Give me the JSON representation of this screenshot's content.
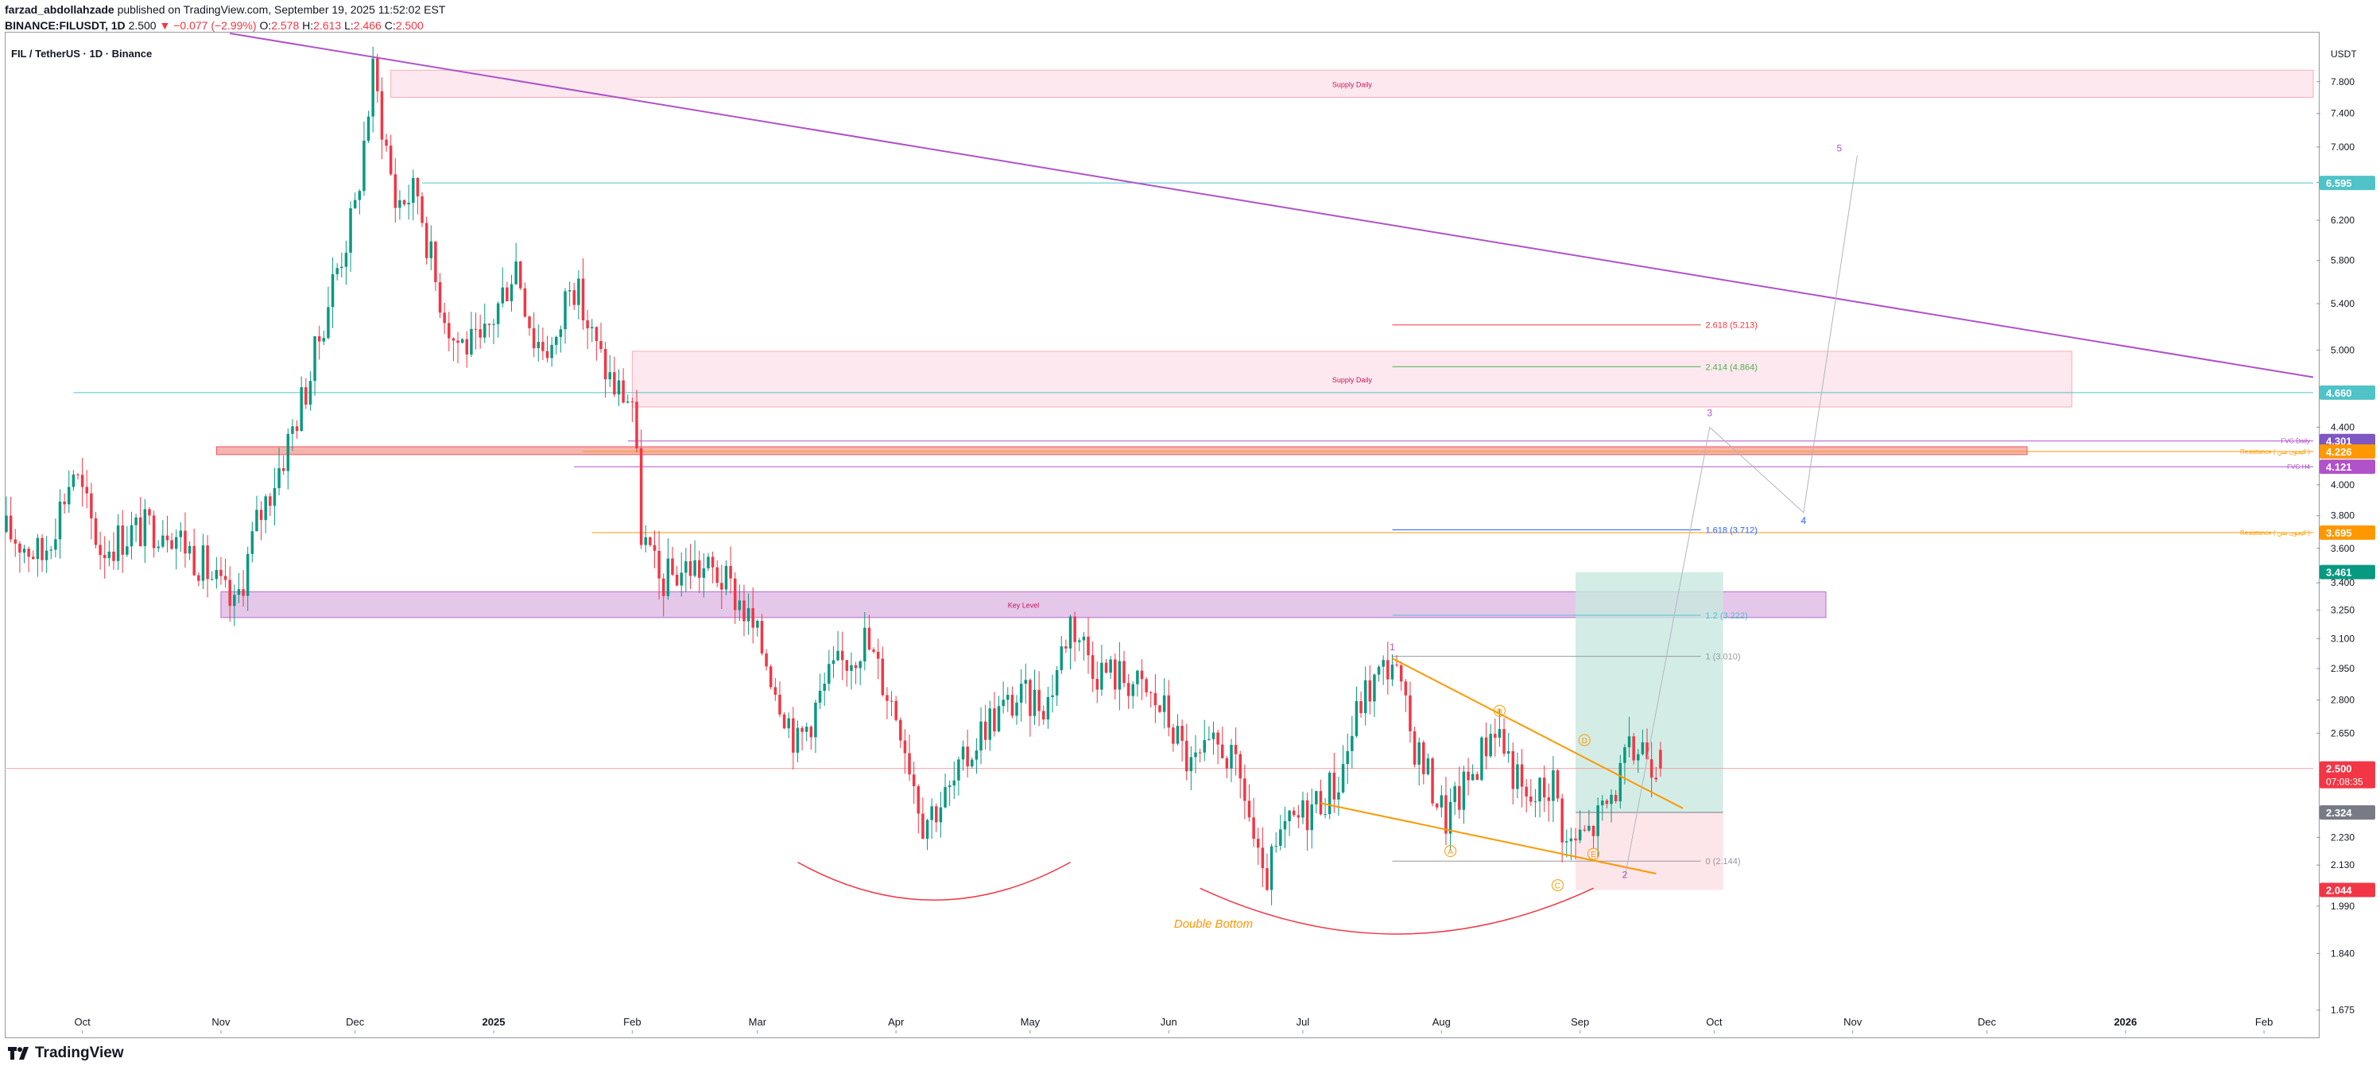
{
  "header": {
    "author": "farzad_abdollahzade",
    "published": "published on TradingView.com, September 19, 2025 11:52:02 EST",
    "symbol_line": "BINANCE:FILUSDT, 1D",
    "last": "2.500",
    "change": "▼ −0.077 (−2.99%)",
    "o_label": "O:",
    "o": "2.578",
    "h_label": "H:",
    "h": "2.613",
    "l_label": "L:",
    "l": "2.466",
    "c_label": "C:",
    "c": "2.500"
  },
  "footer": {
    "brand": "TradingView",
    "logo_icon": "tradingview-logo-icon"
  },
  "colors": {
    "up": "#089981",
    "down": "#f23645",
    "purple": "#b052c9",
    "orange": "#ff9800",
    "supply_fill": "#fce4ec",
    "key_fill": "#e1bee7",
    "fvg_fill": "#f4a9a0",
    "teal": "#4fc3c8",
    "long_green": "#c8e8e0",
    "long_red": "#fde0e3"
  },
  "chart_data": {
    "type": "candlestick",
    "title": "FIL / TetherUS · 1D · Binance",
    "currency": "USDT",
    "scale": "log",
    "ylim": [
      1.62,
      8.45
    ],
    "y_ticks": [
      "7.800",
      "7.400",
      "7.000",
      "6.600",
      "6.200",
      "5.800",
      "5.400",
      "5.000",
      "4.400",
      "4.000",
      "3.800",
      "3.600",
      "3.400",
      "3.250",
      "3.100",
      "2.950",
      "2.800",
      "2.650",
      "2.230",
      "2.130",
      "1.990",
      "1.840",
      "1.675"
    ],
    "x_labels": [
      {
        "label": "Oct",
        "date": "2024-10-01"
      },
      {
        "label": "Nov",
        "date": "2024-11-01"
      },
      {
        "label": "Dec",
        "date": "2024-12-01"
      },
      {
        "label": "2025",
        "date": "2025-01-01",
        "bold": true
      },
      {
        "label": "Feb",
        "date": "2025-02-01"
      },
      {
        "label": "Mar",
        "date": "2025-03-01"
      },
      {
        "label": "Apr",
        "date": "2025-04-01"
      },
      {
        "label": "May",
        "date": "2025-05-01"
      },
      {
        "label": "Jun",
        "date": "2025-06-01"
      },
      {
        "label": "Jul",
        "date": "2025-07-01"
      },
      {
        "label": "Aug",
        "date": "2025-08-01"
      },
      {
        "label": "Sep",
        "date": "2025-09-01"
      },
      {
        "label": "Oct",
        "date": "2025-10-01"
      },
      {
        "label": "Nov",
        "date": "2025-11-01"
      },
      {
        "label": "Dec",
        "date": "2025-12-01"
      },
      {
        "label": "2026",
        "date": "2026-01-01",
        "bold": true
      },
      {
        "label": "Feb",
        "date": "2026-02-01"
      }
    ],
    "anchors": [
      {
        "date": "2024-09-14",
        "close": 3.7
      },
      {
        "date": "2024-09-22",
        "close": 3.55
      },
      {
        "date": "2024-09-29",
        "close": 4.1
      },
      {
        "date": "2024-10-05",
        "close": 3.6
      },
      {
        "date": "2024-10-12",
        "close": 3.7
      },
      {
        "date": "2024-10-20",
        "close": 3.75
      },
      {
        "date": "2024-10-28",
        "close": 3.5
      },
      {
        "date": "2024-11-04",
        "close": 3.25
      },
      {
        "date": "2024-11-09",
        "close": 3.75
      },
      {
        "date": "2024-11-15",
        "close": 4.2
      },
      {
        "date": "2024-11-21",
        "close": 4.8
      },
      {
        "date": "2024-11-26",
        "close": 5.6
      },
      {
        "date": "2024-12-01",
        "close": 6.3
      },
      {
        "date": "2024-12-05",
        "close": 7.9
      },
      {
        "date": "2024-12-07",
        "close": 7.3
      },
      {
        "date": "2024-12-10",
        "close": 6.4
      },
      {
        "date": "2024-12-15",
        "close": 6.5
      },
      {
        "date": "2024-12-19",
        "close": 5.6
      },
      {
        "date": "2024-12-23",
        "close": 5.1
      },
      {
        "date": "2024-12-29",
        "close": 5.0
      },
      {
        "date": "2025-01-06",
        "close": 5.8
      },
      {
        "date": "2025-01-10",
        "close": 5.1
      },
      {
        "date": "2025-01-15",
        "close": 5.0
      },
      {
        "date": "2025-01-18",
        "close": 5.7
      },
      {
        "date": "2025-01-24",
        "close": 5.0
      },
      {
        "date": "2025-01-28",
        "close": 4.7
      },
      {
        "date": "2025-02-01",
        "close": 4.6
      },
      {
        "date": "2025-02-03",
        "close": 3.7
      },
      {
        "date": "2025-02-07",
        "close": 3.4
      },
      {
        "date": "2025-02-14",
        "close": 3.5
      },
      {
        "date": "2025-02-20",
        "close": 3.45
      },
      {
        "date": "2025-02-25",
        "close": 3.3
      },
      {
        "date": "2025-03-03",
        "close": 3.0
      },
      {
        "date": "2025-03-10",
        "close": 2.6
      },
      {
        "date": "2025-03-17",
        "close": 2.9
      },
      {
        "date": "2025-03-25",
        "close": 3.1
      },
      {
        "date": "2025-04-02",
        "close": 2.7
      },
      {
        "date": "2025-04-07",
        "close": 2.3
      },
      {
        "date": "2025-04-13",
        "close": 2.4
      },
      {
        "date": "2025-04-21",
        "close": 2.7
      },
      {
        "date": "2025-04-28",
        "close": 2.8
      },
      {
        "date": "2025-05-05",
        "close": 2.8
      },
      {
        "date": "2025-05-10",
        "close": 3.2
      },
      {
        "date": "2025-05-16",
        "close": 2.95
      },
      {
        "date": "2025-05-23",
        "close": 2.9
      },
      {
        "date": "2025-05-31",
        "close": 2.75
      },
      {
        "date": "2025-06-06",
        "close": 2.5
      },
      {
        "date": "2025-06-13",
        "close": 2.6
      },
      {
        "date": "2025-06-18",
        "close": 2.4
      },
      {
        "date": "2025-06-22",
        "close": 2.05
      },
      {
        "date": "2025-06-27",
        "close": 2.25
      },
      {
        "date": "2025-07-03",
        "close": 2.35
      },
      {
        "date": "2025-07-09",
        "close": 2.45
      },
      {
        "date": "2025-07-14",
        "close": 2.8
      },
      {
        "date": "2025-07-21",
        "close": 3.0
      },
      {
        "date": "2025-07-25",
        "close": 2.65
      },
      {
        "date": "2025-08-02",
        "close": 2.3
      },
      {
        "date": "2025-08-07",
        "close": 2.45
      },
      {
        "date": "2025-08-13",
        "close": 2.7
      },
      {
        "date": "2025-08-20",
        "close": 2.35
      },
      {
        "date": "2025-08-26",
        "close": 2.45
      },
      {
        "date": "2025-08-29",
        "close": 2.2
      },
      {
        "date": "2025-09-03",
        "close": 2.25
      },
      {
        "date": "2025-09-07",
        "close": 2.35
      },
      {
        "date": "2025-09-12",
        "close": 2.55
      },
      {
        "date": "2025-09-15",
        "close": 2.6
      },
      {
        "date": "2025-09-19",
        "close": 2.5
      }
    ],
    "last_candle": {
      "date": "2025-09-19",
      "open": 2.578,
      "high": 2.613,
      "low": 2.466,
      "close": 2.5
    },
    "zones": [
      {
        "label": "Supply Daily",
        "from": "2024-12-09",
        "to": "2026-02-12",
        "top": 7.95,
        "bottom": 7.6,
        "kind": "supply"
      },
      {
        "label": "Supply Daily",
        "from": "2025-02-01",
        "to": "2025-12-20",
        "top": 4.99,
        "bottom": 4.55,
        "kind": "supply"
      },
      {
        "label": "",
        "from": "2024-10-31",
        "to": "2025-12-10",
        "top": 4.26,
        "bottom": 4.205,
        "kind": "fvg"
      },
      {
        "label": "Key Level",
        "from": "2024-11-01",
        "to": "2025-10-26",
        "top": 3.35,
        "bottom": 3.21,
        "kind": "key"
      }
    ],
    "hlines": [
      {
        "label": "",
        "price": 6.595,
        "from": "2024-12-16",
        "color": "#4fc3c8"
      },
      {
        "label": "",
        "price": 4.66,
        "from": "2024-09-29",
        "color": "#4fc3c8"
      },
      {
        "label": "FVG Daily",
        "price": 4.301,
        "from": "2025-01-31",
        "color": "#b052c9"
      },
      {
        "label": "Resistance ( کیجون سن )",
        "price": 4.226,
        "from": "2025-01-21",
        "color": "#ff9800"
      },
      {
        "label": "FVG H4",
        "price": 4.121,
        "from": "2025-01-19",
        "color": "#b052c9"
      },
      {
        "label": "Resistance ( کیجون سن )",
        "price": 3.695,
        "from": "2025-01-23",
        "color": "#ff9800"
      },
      {
        "label": "",
        "price": 2.5,
        "from": "2024-09-14",
        "color": "#f6a1ab"
      }
    ],
    "trendline": {
      "from": {
        "date": "2024-11-03",
        "price": 8.45
      },
      "to": {
        "date": "2026-02-12",
        "price": 4.78
      }
    },
    "fib_levels": [
      {
        "label": "2.618 (5.213)",
        "price": 5.213,
        "color": "#f23645"
      },
      {
        "label": "2.414 (4.864)",
        "price": 4.864,
        "color": "#4caf50"
      },
      {
        "label": "1.618 (3.712)",
        "price": 3.712,
        "color": "#2962ff"
      },
      {
        "label": "1.2 (3.222)",
        "price": 3.222,
        "color": "#4fc3c8"
      },
      {
        "label": "1 (3.010)",
        "price": 3.01,
        "color": "#9598a1"
      },
      {
        "label": "0 (2.144)",
        "price": 2.144,
        "color": "#9598a1"
      }
    ],
    "fib_from": "2025-07-21",
    "fib_to": "2025-09-28",
    "position": {
      "from": "2025-08-31",
      "to": "2025-10-03",
      "entry": 2.324,
      "target": 3.461,
      "stop": 2.044
    },
    "wedge": {
      "upper": [
        {
          "date": "2025-07-21",
          "price": 3.0
        },
        {
          "date": "2025-09-24",
          "price": 2.34
        }
      ],
      "lower": [
        {
          "date": "2025-07-05",
          "price": 2.36
        },
        {
          "date": "2025-09-18",
          "price": 2.1
        }
      ]
    },
    "wave_labels": [
      {
        "label": "1",
        "date": "2025-07-21",
        "price": 3.04,
        "color": "#b052c9"
      },
      {
        "label": "2",
        "date": "2025-09-11",
        "price": 2.085,
        "color": "#b052c9"
      },
      {
        "label": "3",
        "date": "2025-09-30",
        "price": 4.48,
        "color": "#b052c9"
      },
      {
        "label": "4",
        "date": "2025-10-21",
        "price": 3.75,
        "color": "#2962ff"
      },
      {
        "label": "5",
        "date": "2025-10-29",
        "price": 6.95,
        "color": "#b052c9"
      }
    ],
    "projection": [
      {
        "date": "2025-09-11",
        "price": 2.085
      },
      {
        "date": "2025-09-30",
        "price": 4.4
      },
      {
        "date": "2025-10-21",
        "price": 3.82
      },
      {
        "date": "2025-11-02",
        "price": 6.9
      }
    ],
    "abc_labels": [
      {
        "label": "A",
        "date": "2025-08-03",
        "price": 2.18
      },
      {
        "label": "B",
        "date": "2025-08-14",
        "price": 2.75
      },
      {
        "label": "C",
        "date": "2025-08-27",
        "price": 2.06
      },
      {
        "label": "D",
        "date": "2025-09-02",
        "price": 2.62
      },
      {
        "label": "E",
        "date": "2025-09-04",
        "price": 2.17
      }
    ],
    "double_bottom": {
      "label": "Double Bottom",
      "label_date": "2025-06-11",
      "label_price": 1.92,
      "arcs": [
        {
          "from": "2025-03-10",
          "to": "2025-05-10",
          "low": 2.01,
          "top": 2.14
        },
        {
          "from": "2025-06-08",
          "to": "2025-09-04",
          "low": 1.9,
          "top": 2.05
        }
      ]
    },
    "price_tags": [
      {
        "text": "7.800",
        "price": 7.8,
        "bg": "transparent",
        "fg": "#131722",
        "tick": true
      },
      {
        "text": "6.595",
        "price": 6.595,
        "bg": "#4fc3c8",
        "fg": "#ffffff"
      },
      {
        "text": "4.660",
        "price": 4.66,
        "bg": "#4fc3c8",
        "fg": "#ffffff"
      },
      {
        "text": "4.301",
        "price": 4.301,
        "bg": "#7e57c2",
        "fg": "#ffffff"
      },
      {
        "text": "4.226",
        "price": 4.226,
        "bg": "#ff9800",
        "fg": "#ffffff"
      },
      {
        "text": "4.121",
        "price": 4.121,
        "bg": "#b052c9",
        "fg": "#ffffff"
      },
      {
        "text": "3.695",
        "price": 3.695,
        "bg": "#ff9800",
        "fg": "#ffffff"
      },
      {
        "text": "3.461",
        "price": 3.461,
        "bg": "#089981",
        "fg": "#ffffff"
      },
      {
        "text": "2.500",
        "price": 2.5,
        "bg": "#f23645",
        "fg": "#ffffff",
        "sub": "07:08:35"
      },
      {
        "text": "2.324",
        "price": 2.324,
        "bg": "#787b86",
        "fg": "#ffffff"
      },
      {
        "text": "2.044",
        "price": 2.044,
        "bg": "#f23645",
        "fg": "#ffffff"
      }
    ]
  }
}
